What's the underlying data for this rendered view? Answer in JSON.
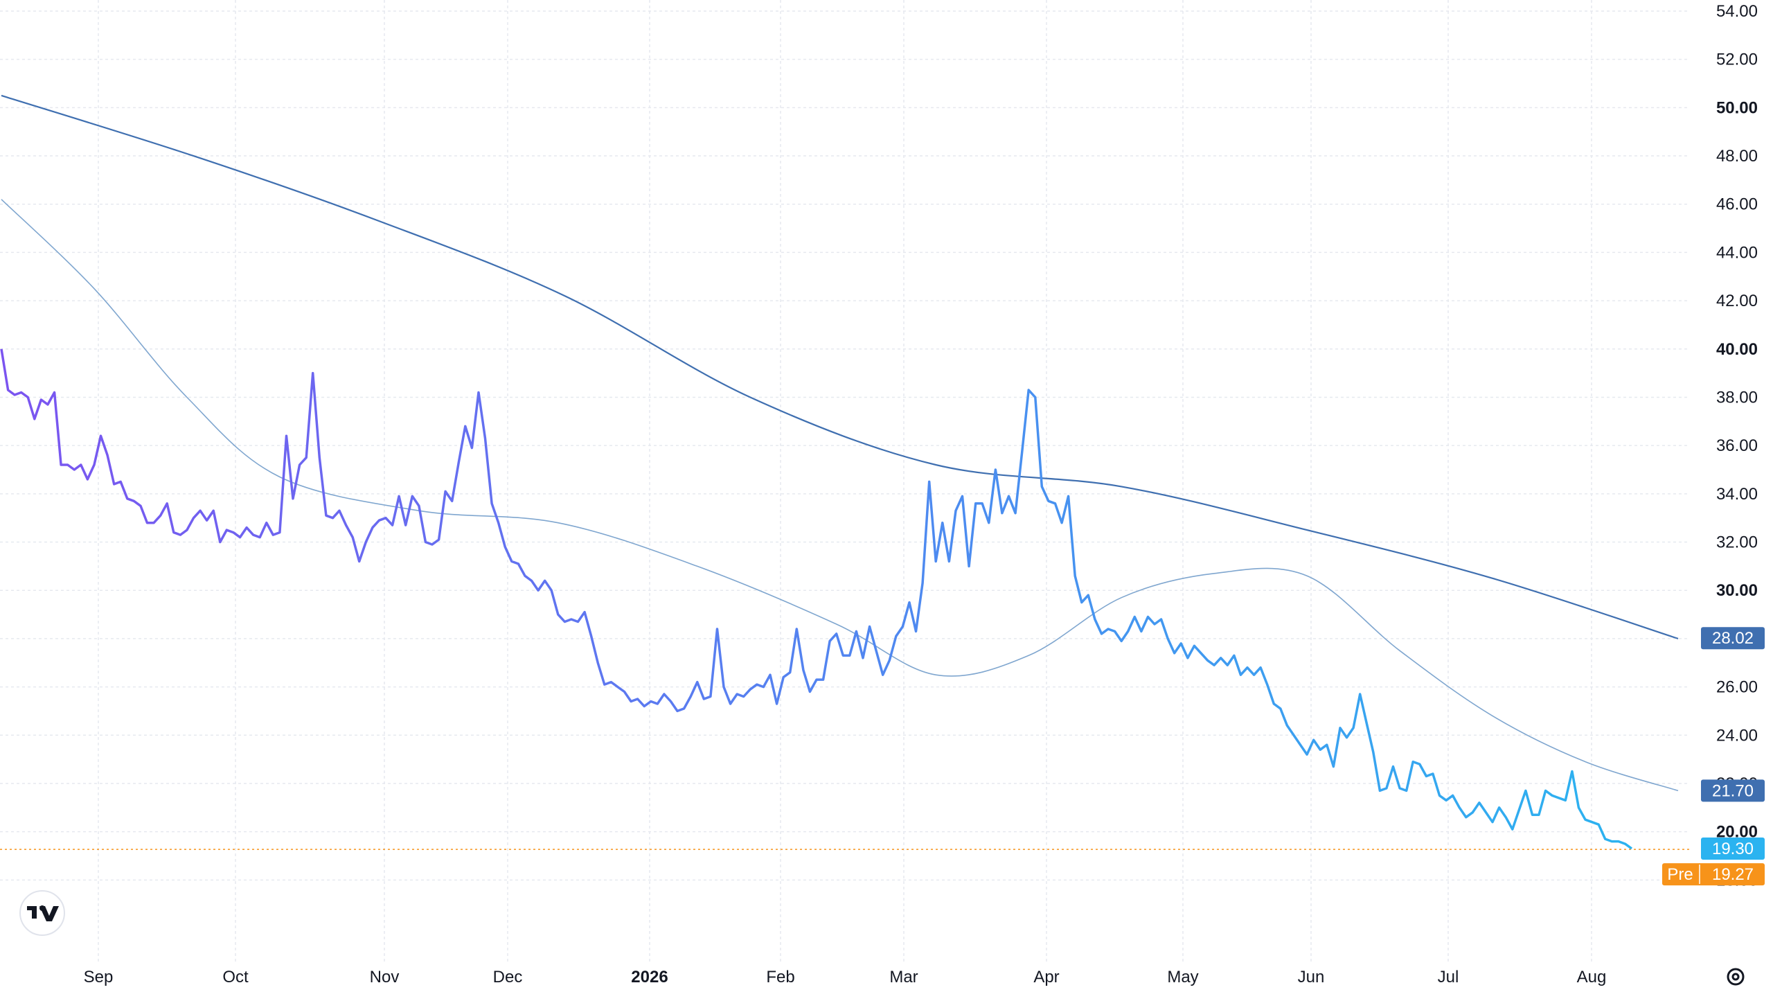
{
  "chart_data": {
    "type": "line",
    "y_axis": {
      "range": [
        16,
        54
      ],
      "ticks": [
        "54.00",
        "52.00",
        "50.00",
        "48.00",
        "46.00",
        "44.00",
        "42.00",
        "40.00",
        "38.00",
        "36.00",
        "34.00",
        "32.00",
        "30.00",
        "28.00",
        "26.00",
        "24.00",
        "22.00",
        "20.00",
        "18.00"
      ],
      "bold_ticks": [
        "50.00",
        "40.00",
        "30.00",
        "20.00"
      ],
      "position": "right"
    },
    "x_axis": {
      "labels": [
        "Sep",
        "Oct",
        "Nov",
        "Dec",
        "2026",
        "Feb",
        "Mar",
        "Apr",
        "May",
        "Jun",
        "Jul",
        "Aug"
      ],
      "bold_labels": [
        "2026"
      ],
      "range": [
        "2025-08-17",
        "2026-08-24"
      ]
    },
    "grid": true,
    "price_series": {
      "color_start": "#7b54f0",
      "color_end": "#2bb3f0",
      "points": [
        [
          "2025-08-17",
          40.0
        ],
        [
          "2025-08-18",
          38.3
        ],
        [
          "2025-08-19",
          38.1
        ],
        [
          "2025-08-20",
          38.2
        ],
        [
          "2025-08-21",
          38.0
        ],
        [
          "2025-08-22",
          37.1
        ],
        [
          "2025-08-23",
          37.9
        ],
        [
          "2025-08-24",
          37.7
        ],
        [
          "2025-08-25",
          38.2
        ],
        [
          "2025-08-26",
          35.2
        ],
        [
          "2025-08-27",
          35.2
        ],
        [
          "2025-08-28",
          35.0
        ],
        [
          "2025-08-29",
          35.2
        ],
        [
          "2025-08-30",
          34.6
        ],
        [
          "2025-08-31",
          35.2
        ],
        [
          "2025-09-01",
          36.4
        ],
        [
          "2025-09-02",
          35.6
        ],
        [
          "2025-09-03",
          34.4
        ],
        [
          "2025-09-04",
          34.5
        ],
        [
          "2025-09-05",
          33.8
        ],
        [
          "2025-09-06",
          33.7
        ],
        [
          "2025-09-07",
          33.5
        ],
        [
          "2025-09-08",
          32.8
        ],
        [
          "2025-09-09",
          32.8
        ],
        [
          "2025-09-10",
          33.1
        ],
        [
          "2025-09-11",
          33.6
        ],
        [
          "2025-09-12",
          32.4
        ],
        [
          "2025-09-13",
          32.3
        ],
        [
          "2025-09-14",
          32.5
        ],
        [
          "2025-09-15",
          33.0
        ],
        [
          "2025-09-16",
          33.3
        ],
        [
          "2025-09-17",
          32.9
        ],
        [
          "2025-09-18",
          33.3
        ],
        [
          "2025-09-19",
          32.0
        ],
        [
          "2025-09-20",
          32.5
        ],
        [
          "2025-09-21",
          32.4
        ],
        [
          "2025-09-22",
          32.2
        ],
        [
          "2025-09-23",
          32.6
        ],
        [
          "2025-09-24",
          32.3
        ],
        [
          "2025-09-25",
          32.2
        ],
        [
          "2025-09-26",
          32.8
        ],
        [
          "2025-09-27",
          32.3
        ],
        [
          "2025-09-28",
          32.4
        ],
        [
          "2025-09-29",
          36.4
        ],
        [
          "2025-09-30",
          33.8
        ],
        [
          "2025-10-01",
          35.2
        ],
        [
          "2025-10-02",
          35.5
        ],
        [
          "2025-10-03",
          39.0
        ],
        [
          "2025-10-04",
          35.5
        ],
        [
          "2025-10-05",
          33.1
        ],
        [
          "2025-10-06",
          33.0
        ],
        [
          "2025-10-07",
          33.3
        ],
        [
          "2025-10-08",
          32.7
        ],
        [
          "2025-10-09",
          32.2
        ],
        [
          "2025-10-10",
          31.2
        ],
        [
          "2025-10-11",
          32.0
        ],
        [
          "2025-10-12",
          32.6
        ],
        [
          "2025-10-13",
          32.9
        ],
        [
          "2025-10-14",
          33.0
        ],
        [
          "2025-10-15",
          32.7
        ],
        [
          "2025-10-16",
          33.9
        ],
        [
          "2025-10-17",
          32.7
        ],
        [
          "2025-10-18",
          33.9
        ],
        [
          "2025-10-19",
          33.5
        ],
        [
          "2025-10-20",
          32.0
        ],
        [
          "2025-10-21",
          31.9
        ],
        [
          "2025-10-22",
          32.1
        ],
        [
          "2025-10-23",
          34.1
        ],
        [
          "2025-10-24",
          33.7
        ],
        [
          "2025-10-25",
          35.3
        ],
        [
          "2025-10-26",
          36.8
        ],
        [
          "2025-10-27",
          35.9
        ],
        [
          "2025-10-28",
          38.2
        ],
        [
          "2025-10-29",
          36.3
        ],
        [
          "2025-10-30",
          33.6
        ],
        [
          "2025-10-31",
          32.8
        ],
        [
          "2025-11-01",
          31.8
        ],
        [
          "2025-11-02",
          31.2
        ],
        [
          "2025-11-03",
          31.1
        ],
        [
          "2025-11-04",
          30.6
        ],
        [
          "2025-11-05",
          30.4
        ],
        [
          "2025-11-06",
          30.0
        ],
        [
          "2025-11-07",
          30.4
        ],
        [
          "2025-11-08",
          30.0
        ],
        [
          "2025-11-09",
          29.0
        ],
        [
          "2025-11-10",
          28.7
        ],
        [
          "2025-11-11",
          28.8
        ],
        [
          "2025-11-12",
          28.7
        ],
        [
          "2025-11-13",
          29.1
        ],
        [
          "2025-11-14",
          28.1
        ],
        [
          "2025-11-15",
          27.0
        ],
        [
          "2025-11-16",
          26.1
        ],
        [
          "2025-11-17",
          26.2
        ],
        [
          "2025-11-18",
          26.0
        ],
        [
          "2025-11-19",
          25.8
        ],
        [
          "2025-11-20",
          25.4
        ],
        [
          "2025-11-21",
          25.5
        ],
        [
          "2025-11-22",
          25.2
        ],
        [
          "2025-11-23",
          25.4
        ],
        [
          "2025-11-24",
          25.3
        ],
        [
          "2025-11-25",
          25.7
        ],
        [
          "2025-11-26",
          25.4
        ],
        [
          "2025-11-27",
          25.0
        ],
        [
          "2025-11-28",
          25.1
        ],
        [
          "2025-11-29",
          25.6
        ],
        [
          "2025-11-30",
          26.2
        ],
        [
          "2025-12-01",
          25.5
        ],
        [
          "2025-12-02",
          25.6
        ],
        [
          "2025-12-03",
          28.4
        ],
        [
          "2025-12-04",
          26.0
        ],
        [
          "2025-12-05",
          25.3
        ],
        [
          "2025-12-06",
          25.7
        ],
        [
          "2025-12-07",
          25.6
        ],
        [
          "2025-12-08",
          25.9
        ],
        [
          "2025-12-09",
          26.1
        ],
        [
          "2025-12-10",
          26.0
        ],
        [
          "2025-12-11",
          26.5
        ],
        [
          "2025-12-12",
          25.3
        ],
        [
          "2025-12-13",
          26.4
        ],
        [
          "2025-12-14",
          26.6
        ],
        [
          "2025-12-15",
          28.4
        ],
        [
          "2025-12-16",
          26.7
        ],
        [
          "2025-12-17",
          25.8
        ],
        [
          "2025-12-18",
          26.3
        ],
        [
          "2025-12-19",
          26.3
        ],
        [
          "2025-12-20",
          27.9
        ],
        [
          "2025-12-21",
          28.2
        ],
        [
          "2025-12-22",
          27.3
        ],
        [
          "2025-12-23",
          27.3
        ],
        [
          "2025-12-24",
          28.3
        ],
        [
          "2025-12-25",
          27.2
        ],
        [
          "2025-12-26",
          28.5
        ],
        [
          "2025-12-27",
          27.5
        ],
        [
          "2025-12-28",
          26.5
        ],
        [
          "2025-12-29",
          27.1
        ],
        [
          "2025-12-30",
          28.1
        ],
        [
          "2025-12-31",
          28.5
        ],
        [
          "2026-01-01",
          29.5
        ],
        [
          "2026-01-02",
          28.3
        ],
        [
          "2026-01-03",
          30.3
        ],
        [
          "2026-01-04",
          34.5
        ],
        [
          "2026-01-05",
          31.2
        ],
        [
          "2026-01-06",
          32.8
        ],
        [
          "2026-01-07",
          31.2
        ],
        [
          "2026-01-08",
          33.3
        ],
        [
          "2026-01-09",
          33.9
        ],
        [
          "2026-01-10",
          31.0
        ],
        [
          "2026-01-11",
          33.6
        ],
        [
          "2026-01-12",
          33.6
        ],
        [
          "2026-01-13",
          32.8
        ],
        [
          "2026-01-14",
          35.0
        ],
        [
          "2026-01-15",
          33.2
        ],
        [
          "2026-01-16",
          33.9
        ],
        [
          "2026-01-17",
          33.2
        ],
        [
          "2026-01-18",
          35.7
        ],
        [
          "2026-01-19",
          38.3
        ],
        [
          "2026-01-20",
          38.0
        ],
        [
          "2026-01-21",
          34.3
        ],
        [
          "2026-01-22",
          33.7
        ],
        [
          "2026-01-23",
          33.6
        ],
        [
          "2026-01-24",
          32.8
        ],
        [
          "2026-01-25",
          33.9
        ],
        [
          "2026-01-26",
          30.6
        ],
        [
          "2026-01-27",
          29.5
        ],
        [
          "2026-01-28",
          29.8
        ],
        [
          "2026-01-29",
          28.8
        ],
        [
          "2026-01-30",
          28.2
        ],
        [
          "2026-01-31",
          28.4
        ],
        [
          "2026-02-01",
          28.3
        ],
        [
          "2026-02-02",
          27.9
        ],
        [
          "2026-02-03",
          28.3
        ],
        [
          "2026-02-04",
          28.9
        ],
        [
          "2026-02-05",
          28.3
        ],
        [
          "2026-02-06",
          28.9
        ],
        [
          "2026-02-07",
          28.6
        ],
        [
          "2026-02-08",
          28.8
        ],
        [
          "2026-02-09",
          28.0
        ],
        [
          "2026-02-10",
          27.4
        ],
        [
          "2026-02-11",
          27.8
        ],
        [
          "2026-02-12",
          27.2
        ],
        [
          "2026-02-13",
          27.7
        ],
        [
          "2026-02-14",
          27.4
        ],
        [
          "2026-02-15",
          27.1
        ],
        [
          "2026-02-16",
          26.9
        ],
        [
          "2026-02-17",
          27.2
        ],
        [
          "2026-02-18",
          26.9
        ],
        [
          "2026-02-19",
          27.3
        ],
        [
          "2026-02-20",
          26.5
        ],
        [
          "2026-02-21",
          26.8
        ],
        [
          "2026-02-22",
          26.5
        ],
        [
          "2026-02-23",
          26.8
        ],
        [
          "2026-02-24",
          26.1
        ],
        [
          "2026-02-25",
          25.3
        ],
        [
          "2026-02-26",
          25.1
        ],
        [
          "2026-02-27",
          24.4
        ],
        [
          "2026-02-28",
          24.0
        ],
        [
          "2026-03-01",
          23.6
        ],
        [
          "2026-03-02",
          23.2
        ],
        [
          "2026-03-03",
          23.8
        ],
        [
          "2026-03-04",
          23.4
        ],
        [
          "2026-03-05",
          23.6
        ],
        [
          "2026-03-06",
          22.7
        ],
        [
          "2026-03-07",
          24.3
        ],
        [
          "2026-03-08",
          23.9
        ],
        [
          "2026-03-09",
          24.3
        ],
        [
          "2026-03-10",
          25.7
        ],
        [
          "2026-03-11",
          24.5
        ],
        [
          "2026-03-12",
          23.3
        ],
        [
          "2026-03-13",
          21.7
        ],
        [
          "2026-03-14",
          21.8
        ],
        [
          "2026-03-15",
          22.7
        ],
        [
          "2026-03-16",
          21.8
        ],
        [
          "2026-03-17",
          21.7
        ],
        [
          "2026-03-18",
          22.9
        ],
        [
          "2026-03-19",
          22.8
        ],
        [
          "2026-03-20",
          22.3
        ],
        [
          "2026-03-21",
          22.4
        ],
        [
          "2026-03-22",
          21.5
        ],
        [
          "2026-03-23",
          21.3
        ],
        [
          "2026-03-24",
          21.5
        ],
        [
          "2026-03-25",
          21.0
        ],
        [
          "2026-03-26",
          20.6
        ],
        [
          "2026-03-27",
          20.8
        ],
        [
          "2026-03-28",
          21.2
        ],
        [
          "2026-03-29",
          20.8
        ],
        [
          "2026-03-30",
          20.4
        ],
        [
          "2026-03-31",
          21.0
        ],
        [
          "2026-04-01",
          20.6
        ],
        [
          "2026-04-02",
          20.1
        ],
        [
          "2026-04-03",
          20.9
        ],
        [
          "2026-04-04",
          21.7
        ],
        [
          "2026-04-05",
          20.7
        ],
        [
          "2026-04-06",
          20.7
        ],
        [
          "2026-04-07",
          21.7
        ],
        [
          "2026-04-08",
          21.5
        ],
        [
          "2026-04-09",
          21.4
        ],
        [
          "2026-04-10",
          21.3
        ],
        [
          "2026-04-11",
          22.5
        ],
        [
          "2026-04-12",
          21.0
        ],
        [
          "2026-04-13",
          20.5
        ],
        [
          "2026-04-14",
          20.4
        ],
        [
          "2026-04-15",
          20.3
        ],
        [
          "2026-04-16",
          19.7
        ],
        [
          "2026-04-17",
          19.6
        ],
        [
          "2026-04-18",
          19.6
        ],
        [
          "2026-04-19",
          19.5
        ],
        [
          "2026-04-20",
          19.3
        ]
      ]
    },
    "ma_long": {
      "color": "#3f6fb0",
      "points": [
        [
          "2025-08-17",
          50.5
        ],
        [
          "2025-09-15",
          48.0
        ],
        [
          "2025-10-13",
          45.3
        ],
        [
          "2025-11-10",
          42.2
        ],
        [
          "2025-12-08",
          38.0
        ],
        [
          "2026-01-05",
          35.2
        ],
        [
          "2026-02-02",
          34.3
        ],
        [
          "2026-03-02",
          32.5
        ],
        [
          "2026-03-30",
          30.5
        ],
        [
          "2026-04-27",
          28.0
        ]
      ]
    },
    "ma_short": {
      "color": "#7fa6cf",
      "points": [
        [
          "2025-08-17",
          46.2
        ],
        [
          "2025-08-31",
          42.5
        ],
        [
          "2025-09-14",
          38.0
        ],
        [
          "2025-09-28",
          34.7
        ],
        [
          "2025-10-19",
          33.3
        ],
        [
          "2025-11-09",
          32.8
        ],
        [
          "2025-11-30",
          31.0
        ],
        [
          "2025-12-21",
          28.6
        ],
        [
          "2026-01-05",
          26.5
        ],
        [
          "2026-01-19",
          27.3
        ],
        [
          "2026-02-02",
          29.7
        ],
        [
          "2026-02-16",
          30.7
        ],
        [
          "2026-03-02",
          30.6
        ],
        [
          "2026-03-16",
          27.5
        ],
        [
          "2026-03-30",
          24.8
        ],
        [
          "2026-04-13",
          22.9
        ],
        [
          "2026-04-27",
          21.7
        ]
      ]
    },
    "price_tags": [
      {
        "label": "28.02",
        "value": 28.02,
        "color": "#3f6fb0"
      },
      {
        "label": "21.70",
        "value": 21.7,
        "color": "#3f6fb0"
      },
      {
        "label": "19.30",
        "value": 19.3,
        "color": "#2bb3f0"
      }
    ],
    "pre_tag": {
      "prefix": "Pre",
      "label": "19.27",
      "value": 19.27,
      "color": "#f7931a"
    },
    "reference_line": {
      "value": 19.27,
      "color": "#f7931a",
      "style": "dotted"
    }
  },
  "ui": {
    "logo_text": "TV",
    "settings_icon": "gear-icon"
  }
}
